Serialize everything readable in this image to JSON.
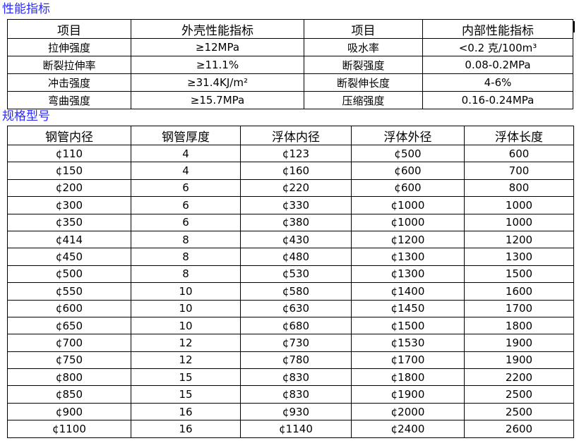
{
  "performance": {
    "title": "性能指标",
    "headers": [
      "项目",
      "外壳性能指标",
      "项目",
      "内部性能指标"
    ],
    "rows": [
      [
        "拉伸强度",
        "≥12MPa",
        "吸水率",
        "<0.2 克/100m³"
      ],
      [
        "断裂拉伸率",
        "≥11.1%",
        "断裂强度",
        "0.08-0.2MPa"
      ],
      [
        "冲击强度",
        "≥31.4KJ/m²",
        "断裂伸长度",
        "4-6%"
      ],
      [
        "弯曲强度",
        "≥15.7MPa",
        "压缩强度",
        "0.16-0.24MPa"
      ]
    ]
  },
  "specs": {
    "title": "规格型号",
    "headers": [
      "钢管内径",
      "钢管厚度",
      "浮体内径",
      "浮体外径",
      "浮体长度"
    ],
    "rows": [
      [
        "¢110",
        "4",
        "¢123",
        "¢500",
        "600"
      ],
      [
        "¢150",
        "4",
        "¢160",
        "¢600",
        "700"
      ],
      [
        "¢200",
        "6",
        "¢220",
        "¢600",
        "800"
      ],
      [
        "¢300",
        "6",
        "¢330",
        "¢1000",
        "1000"
      ],
      [
        "¢350",
        "6",
        "¢380",
        "¢1000",
        "1000"
      ],
      [
        "¢414",
        "8",
        "¢430",
        "¢1200",
        "1200"
      ],
      [
        "¢450",
        "8",
        "¢480",
        "¢1300",
        "1300"
      ],
      [
        "¢500",
        "8",
        "¢530",
        "¢1300",
        "1500"
      ],
      [
        "¢550",
        "10",
        "¢580",
        "¢1400",
        "1600"
      ],
      [
        "¢600",
        "10",
        "¢630",
        "¢1450",
        "1700"
      ],
      [
        "¢650",
        "10",
        "¢680",
        "¢1500",
        "1800"
      ],
      [
        "¢700",
        "12",
        "¢730",
        "¢1530",
        "1900"
      ],
      [
        "¢750",
        "12",
        "¢780",
        "¢1700",
        "1900"
      ],
      [
        "¢800",
        "15",
        "¢830",
        "¢1800",
        "2200"
      ],
      [
        "¢850",
        "15",
        "¢830",
        "¢1900",
        "2500"
      ],
      [
        "¢900",
        "16",
        "¢930",
        "¢2000",
        "2500"
      ],
      [
        "¢1100",
        "16",
        "¢1140",
        "¢2400",
        "2600"
      ]
    ]
  }
}
